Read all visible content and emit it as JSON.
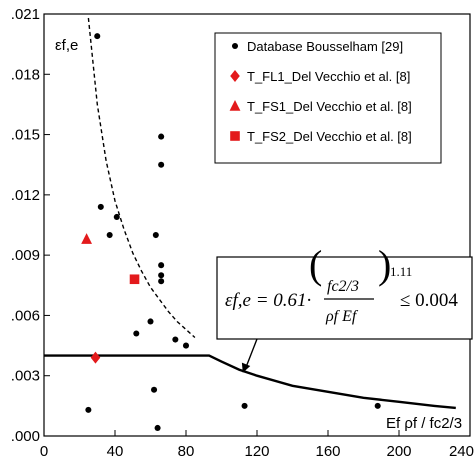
{
  "chart_data": {
    "type": "scatter",
    "xlim": [
      0,
      240
    ],
    "ylim": [
      0.0,
      0.021
    ],
    "x_ticks": [
      0,
      40,
      80,
      120,
      160,
      200,
      240
    ],
    "x_tick_labels": [
      "0",
      "40",
      "80",
      "120",
      "160",
      "200",
      "240"
    ],
    "y_ticks": [
      0.0,
      0.003,
      0.006,
      0.009,
      0.012,
      0.015,
      0.018,
      0.021
    ],
    "y_tick_labels": [
      ".000",
      ".003",
      ".006",
      ".009",
      ".012",
      ".015",
      ".018",
      ".021"
    ],
    "ylabel": "εf,e",
    "xlabel": "Ef ρf / fc2/3",
    "grid": false,
    "legend_placement": "top-right",
    "series": [
      {
        "name": "Database Bousselham [29]",
        "marker": "circle",
        "color": "#000000",
        "points": [
          [
            30,
            0.0199
          ],
          [
            32,
            0.0114
          ],
          [
            37,
            0.01
          ],
          [
            41,
            0.0109
          ],
          [
            63,
            0.01
          ],
          [
            66,
            0.0149
          ],
          [
            66,
            0.0135
          ],
          [
            66,
            0.0085
          ],
          [
            66,
            0.008
          ],
          [
            66,
            0.0077
          ],
          [
            52,
            0.0051
          ],
          [
            60,
            0.0057
          ],
          [
            74,
            0.0048
          ],
          [
            80,
            0.0045
          ],
          [
            25,
            0.0013
          ],
          [
            62,
            0.0023
          ],
          [
            64,
            0.0004
          ],
          [
            113,
            0.0015
          ],
          [
            188,
            0.0015
          ]
        ]
      },
      {
        "name": "T_FL1_Del Vecchio et al. [8]",
        "marker": "diamond",
        "color": "#e31a1c",
        "points": [
          [
            29,
            0.0039
          ]
        ]
      },
      {
        "name": "T_FS1_Del Vecchio et al. [8]",
        "marker": "triangle",
        "color": "#e31a1c",
        "points": [
          [
            24,
            0.0098
          ]
        ]
      },
      {
        "name": "T_FS2_Del Vecchio et al. [8]",
        "marker": "square",
        "color": "#e31a1c",
        "points": [
          [
            51,
            0.0078
          ]
        ]
      }
    ],
    "curves": [
      {
        "style": "dashed",
        "points": [
          [
            25,
            0.0208
          ],
          [
            30,
            0.0165
          ],
          [
            35,
            0.0137
          ],
          [
            40,
            0.0117
          ],
          [
            45,
            0.0103
          ],
          [
            50,
            0.0091
          ],
          [
            55,
            0.0082
          ],
          [
            60,
            0.0074
          ],
          [
            65,
            0.0068
          ],
          [
            70,
            0.0062
          ],
          [
            75,
            0.0057
          ],
          [
            80,
            0.0053
          ],
          [
            85,
            0.0049
          ]
        ]
      },
      {
        "style": "solid",
        "points": [
          [
            0,
            0.004
          ],
          [
            93,
            0.004
          ],
          [
            100,
            0.0037
          ],
          [
            110,
            0.0033
          ],
          [
            120,
            0.003
          ],
          [
            140,
            0.0025
          ],
          [
            160,
            0.0022
          ],
          [
            180,
            0.0019
          ],
          [
            200,
            0.0017
          ],
          [
            220,
            0.0015
          ],
          [
            232,
            0.0014
          ]
        ]
      }
    ],
    "equation": {
      "lhs": "εf,e = 0.61·",
      "numerator": "fc2/3",
      "denominator": "ρf Ef",
      "exponent": "1.11",
      "rhs": "≤ 0.004"
    },
    "annotation_arrow": {
      "from": [
        120,
        0.005
      ],
      "to": [
        112,
        0.0031
      ]
    }
  }
}
